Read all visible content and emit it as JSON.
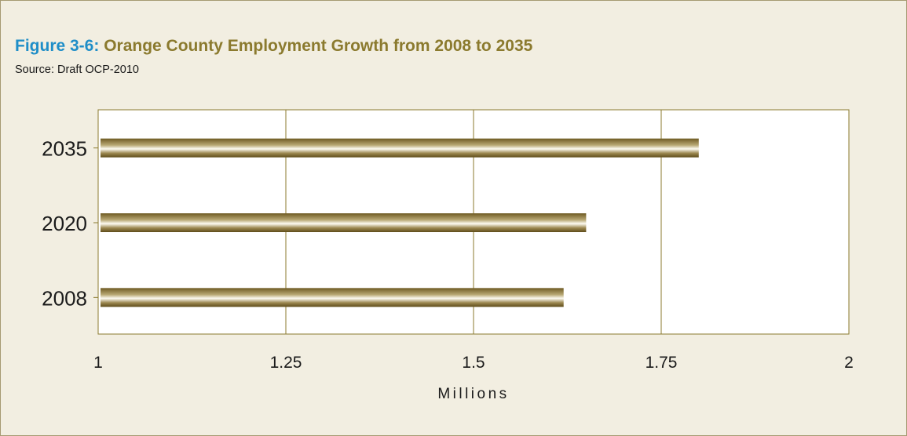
{
  "figure": {
    "label": "Figure 3-6:",
    "title": "Orange County Employment Growth from 2008 to 2035",
    "source": "Source: Draft OCP-2010"
  },
  "colors": {
    "background": "#f2eee1",
    "title_label": "#1f8ec8",
    "title_text": "#8b7a2e",
    "bar_dark": "#6e5a22",
    "bar_light": "#fdfbf2",
    "gridline": "#8b7a2e"
  },
  "chart_data": {
    "type": "bar",
    "orientation": "horizontal",
    "categories": [
      "2035",
      "2020",
      "2008"
    ],
    "values": [
      1.8,
      1.65,
      1.62
    ],
    "xlabel": "Millions",
    "ylabel": "",
    "xlim": [
      1,
      2
    ],
    "xticks": [
      "1",
      "1.25",
      "1.5",
      "1.75",
      "2"
    ],
    "grid": true
  }
}
